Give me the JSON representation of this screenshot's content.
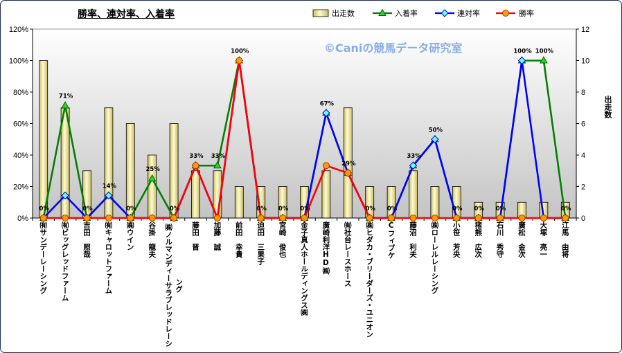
{
  "chart_data": {
    "type": "bar",
    "title": "勝率、連対率、入着率",
    "watermark": "©Caniの競馬データ研究室",
    "categories": [
      "㈲サンデーレーシング",
      "㈲ビッグレッドファーム",
      "吉田　照哉",
      "㈲キャロットファーム",
      "㈱ウイン",
      "谷掛　龍夫",
      "㈱ノルマンディーサラブレッドレーシング",
      "藤田　晋",
      "加藤　誠",
      "前田　幸貴",
      "迫田　三果子",
      "宮崎　俊也",
      "金子真人ホールディングス㈱",
      "廣崎利洋HD㈱",
      "㈲社台レースホース",
      "㈱ヒダカ・ブリーダーズ・ユニオン",
      "Cフィブケ",
      "藤沼　利夫",
      "㈱ローレルレーシング",
      "小笹　芳央",
      "猪熊　広次",
      "石川　秀守",
      "廣松　金次",
      "大塚　亮一",
      "江馬　由将"
    ],
    "series": [
      {
        "name": "出走数",
        "type": "bar",
        "axis": "right",
        "color": "#e8dd8c",
        "values": [
          10,
          7,
          3,
          7,
          6,
          4,
          6,
          3,
          3,
          2,
          2,
          2,
          2,
          3,
          7,
          2,
          2,
          3,
          2,
          2,
          1,
          1,
          1,
          1,
          1
        ]
      },
      {
        "name": "入着率",
        "type": "line",
        "axis": "left",
        "color": "#008000",
        "marker": "triangle",
        "marker_fill": "#33cc33",
        "marker_stroke": "#006600",
        "values": [
          0,
          71.4,
          0,
          14.3,
          0,
          25,
          0,
          33.3,
          33.3,
          100,
          0,
          0,
          0,
          66.7,
          28.6,
          0,
          0,
          33.3,
          50,
          0,
          0,
          0,
          100,
          100,
          0
        ]
      },
      {
        "name": "連対率",
        "type": "line",
        "axis": "left",
        "color": "#0000ff",
        "marker": "diamond",
        "marker_fill": "#66ffff",
        "marker_stroke": "#0000cc",
        "values": [
          0,
          14.3,
          0,
          14.3,
          0,
          0,
          0,
          33.3,
          0,
          100,
          0,
          0,
          0,
          66.7,
          28.6,
          0,
          0,
          33.3,
          50,
          0,
          0,
          0,
          100,
          0,
          0
        ]
      },
      {
        "name": "勝率",
        "type": "line",
        "axis": "left",
        "color": "#ff0000",
        "marker": "circle",
        "marker_fill": "#ff9900",
        "marker_stroke": "#aa3300",
        "values": [
          0,
          0,
          0,
          0,
          0,
          0,
          0,
          33.3,
          0,
          100,
          0,
          0,
          0,
          33.3,
          28.6,
          0,
          0,
          0,
          0,
          0,
          0,
          0,
          0,
          0,
          0
        ]
      }
    ],
    "data_labels": [
      "0%",
      "71%",
      "0%",
      "14%",
      "0%",
      "25%",
      "0%",
      "33%",
      "33%",
      "100%",
      "0%",
      "0%",
      "0%",
      "67%",
      "29%",
      "0%",
      "0%",
      "33%",
      "50%",
      "0%",
      "0%",
      "0%",
      "100%",
      "100%",
      "0%"
    ],
    "ylim": [
      0,
      120
    ],
    "y_ticks": [
      0,
      20,
      40,
      60,
      80,
      100,
      120
    ],
    "y_tick_labels": [
      "0%",
      "20%",
      "40%",
      "60%",
      "80%",
      "100%",
      "120%"
    ],
    "y2lim": [
      0,
      12
    ],
    "y2_ticks": [
      0,
      2,
      4,
      6,
      8,
      10,
      12
    ],
    "y2_tick_labels": [
      "0",
      "2",
      "4",
      "6",
      "8",
      "10",
      "12"
    ],
    "y2label": "出走数",
    "legend": "top-right",
    "grid": false
  }
}
